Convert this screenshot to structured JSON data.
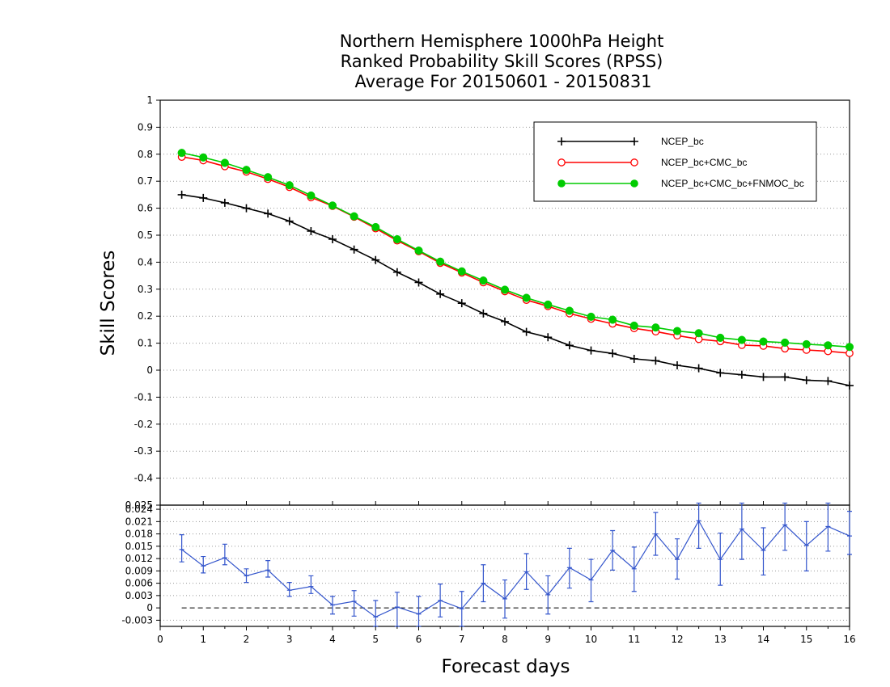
{
  "title_lines": [
    "Northern Hemisphere 1000hPa Height",
    "Ranked Probability Skill Scores (RPSS)",
    "Average For 20150601 - 20150831"
  ],
  "ylabel": "Skill Scores",
  "xlabel": "Forecast days",
  "chart_data": [
    {
      "type": "line",
      "xlabel": "Forecast days",
      "ylabel": "Skill Scores",
      "xlim": [
        0,
        16
      ],
      "ylim": [
        -0.5,
        1
      ],
      "grid": true,
      "legend_position": "top-right",
      "x_ticks": [
        "0",
        "1",
        "2",
        "3",
        "4",
        "5",
        "6",
        "7",
        "8",
        "9",
        "10",
        "11",
        "12",
        "13",
        "14",
        "15",
        "16"
      ],
      "y_ticks": [
        "-0.4",
        "-0.3",
        "-0.2",
        "-0.1",
        "0",
        "0.1",
        "0.2",
        "0.3",
        "0.4",
        "0.5",
        "0.6",
        "0.7",
        "0.8",
        "0.9",
        "1"
      ],
      "x": [
        0.5,
        1,
        1.5,
        2,
        2.5,
        3,
        3.5,
        4,
        4.5,
        5,
        5.5,
        6,
        6.5,
        7,
        7.5,
        8,
        8.5,
        9,
        9.5,
        10,
        10.5,
        11,
        11.5,
        12,
        12.5,
        13,
        13.5,
        14,
        14.5,
        15,
        15.5,
        16
      ],
      "series": [
        {
          "name": "NCEP_bc",
          "color": "#000000",
          "marker": "plus",
          "values": [
            0.65,
            0.638,
            0.62,
            0.6,
            0.58,
            0.552,
            0.515,
            0.485,
            0.447,
            0.408,
            0.363,
            0.325,
            0.282,
            0.248,
            0.21,
            0.18,
            0.142,
            0.122,
            0.092,
            0.073,
            0.062,
            0.042,
            0.035,
            0.018,
            0.007,
            -0.01,
            -0.017,
            -0.025,
            -0.025,
            -0.037,
            -0.04,
            -0.057
          ]
        },
        {
          "name": "NCEP_bc+CMC_bc",
          "color": "#ff0000",
          "marker": "open-circle",
          "values": [
            0.79,
            0.777,
            0.755,
            0.735,
            0.708,
            0.678,
            0.64,
            0.608,
            0.568,
            0.525,
            0.48,
            0.44,
            0.397,
            0.361,
            0.325,
            0.292,
            0.26,
            0.237,
            0.21,
            0.19,
            0.172,
            0.155,
            0.143,
            0.128,
            0.115,
            0.107,
            0.093,
            0.09,
            0.08,
            0.075,
            0.07,
            0.063
          ]
        },
        {
          "name": "NCEP_bc+CMC_bc+FNMOC_bc",
          "color": "#00cc00",
          "marker": "filled-circle",
          "values": [
            0.805,
            0.788,
            0.768,
            0.742,
            0.715,
            0.685,
            0.647,
            0.61,
            0.57,
            0.53,
            0.485,
            0.443,
            0.402,
            0.366,
            0.332,
            0.298,
            0.268,
            0.243,
            0.22,
            0.198,
            0.187,
            0.165,
            0.158,
            0.145,
            0.137,
            0.12,
            0.112,
            0.106,
            0.102,
            0.096,
            0.092,
            0.086
          ]
        }
      ]
    },
    {
      "type": "line",
      "description_type": "difference-with-error-bars",
      "xlim": [
        0,
        16
      ],
      "ylim": [
        -0.0045,
        0.025
      ],
      "x_ticks": [
        "0",
        "1",
        "2",
        "3",
        "4",
        "5",
        "6",
        "7",
        "8",
        "9",
        "10",
        "11",
        "12",
        "13",
        "14",
        "15",
        "16"
      ],
      "y_ticks": [
        "-0.003",
        "0",
        "0.003",
        "0.006",
        "0.009",
        "0.012",
        "0.015",
        "0.018",
        "0.021",
        "0.024",
        "0.025"
      ],
      "zero_line": "dashed",
      "series": [
        {
          "color": "#3355cc",
          "x": [
            0.5,
            1,
            1.5,
            2,
            2.5,
            3,
            3.5,
            4,
            4.5,
            5,
            5.5,
            6,
            6.5,
            7,
            7.5,
            8,
            8.5,
            9,
            9.5,
            10,
            10.5,
            11,
            11.5,
            12,
            12.5,
            13,
            13.5,
            14,
            14.5,
            15,
            15.5,
            16
          ],
          "values": [
            0.0142,
            0.0102,
            0.0122,
            0.0078,
            0.0092,
            0.0043,
            0.0052,
            0.0007,
            0.0016,
            -0.0022,
            0.0002,
            -0.0015,
            0.0018,
            -0.0002,
            0.006,
            0.0022,
            0.0088,
            0.0032,
            0.0098,
            0.0068,
            0.014,
            0.0095,
            0.018,
            0.0118,
            0.0212,
            0.0118,
            0.0192,
            0.014,
            0.0202,
            0.0152,
            0.0198,
            0.0175
          ],
          "error_low": [
            0.0112,
            0.0085,
            0.0105,
            0.0062,
            0.0075,
            0.0028,
            0.0035,
            -0.0015,
            -0.002,
            -0.0045,
            -0.0045,
            -0.0045,
            -0.0022,
            -0.0045,
            0.0015,
            -0.0025,
            0.0045,
            -0.0015,
            0.0048,
            0.0015,
            0.0092,
            0.004,
            0.0128,
            0.007,
            0.0145,
            0.0055,
            0.0118,
            0.008,
            0.014,
            0.009,
            0.0138,
            0.013
          ],
          "error_high": [
            0.0178,
            0.0125,
            0.0155,
            0.0095,
            0.0115,
            0.0062,
            0.0078,
            0.0028,
            0.0042,
            0.0018,
            0.0038,
            0.0028,
            0.0058,
            0.004,
            0.0105,
            0.0068,
            0.0132,
            0.0078,
            0.0145,
            0.0118,
            0.0188,
            0.0148,
            0.0232,
            0.0168,
            0.0255,
            0.0182,
            0.0255,
            0.0195,
            0.0255,
            0.021,
            0.0255,
            0.0235
          ]
        }
      ]
    }
  ]
}
